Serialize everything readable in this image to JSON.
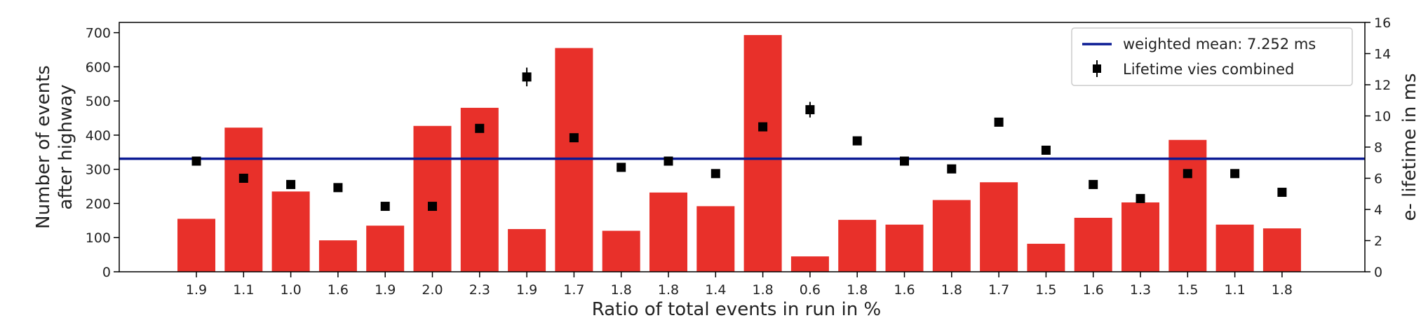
{
  "chart_data": {
    "type": "bar",
    "xlabel": "Ratio of total events in run in %",
    "ylabel_lines": [
      "Number of events",
      "after highway"
    ],
    "y2label": "e- lifetime in ms",
    "categories": [
      "1.9",
      "1.1",
      "1.0",
      "1.6",
      "1.9",
      "2.0",
      "2.3",
      "1.9",
      "1.7",
      "1.8",
      "1.8",
      "1.4",
      "1.8",
      "0.6",
      "1.8",
      "1.6",
      "1.8",
      "1.7",
      "1.5",
      "1.6",
      "1.3",
      "1.5",
      "1.1",
      "1.8"
    ],
    "ylim": [
      0,
      730
    ],
    "yticks": [
      0,
      100,
      200,
      300,
      400,
      500,
      600,
      700
    ],
    "y2lim": [
      0,
      16
    ],
    "y2ticks": [
      0,
      2,
      4,
      6,
      8,
      10,
      12,
      14,
      16
    ],
    "bar_color": "#e8302a",
    "series": [
      {
        "kind": "bar",
        "values": [
          155,
          422,
          235,
          92,
          135,
          427,
          480,
          125,
          655,
          120,
          232,
          192,
          693,
          45,
          152,
          138,
          210,
          262,
          82,
          158,
          203,
          386,
          138,
          127
        ]
      },
      {
        "name": "Lifetime vies combined",
        "kind": "points",
        "axis": "right",
        "color": "#000000",
        "values": [
          7.1,
          6.0,
          5.6,
          5.4,
          4.2,
          4.2,
          9.2,
          12.5,
          8.6,
          6.7,
          7.1,
          6.3,
          9.3,
          10.4,
          8.4,
          7.1,
          6.6,
          9.6,
          7.8,
          5.6,
          4.7,
          6.3,
          6.3,
          5.1
        ],
        "errors": [
          0.1,
          0.1,
          0.1,
          0.1,
          0.1,
          0.1,
          0.15,
          0.6,
          0.1,
          0.1,
          0.1,
          0.1,
          0.1,
          0.5,
          0.2,
          0.1,
          0.1,
          0.25,
          0.1,
          0.1,
          0.1,
          0.1,
          0.1,
          0.1
        ]
      }
    ],
    "hline": {
      "name": "weighted mean: 7.252 ms",
      "axis": "right",
      "value": 7.252,
      "color": "#0b1b94"
    },
    "legend": {
      "placement": "top-right",
      "entries": [
        "weighted mean: 7.252 ms",
        "Lifetime vies combined"
      ]
    },
    "grid": false
  }
}
